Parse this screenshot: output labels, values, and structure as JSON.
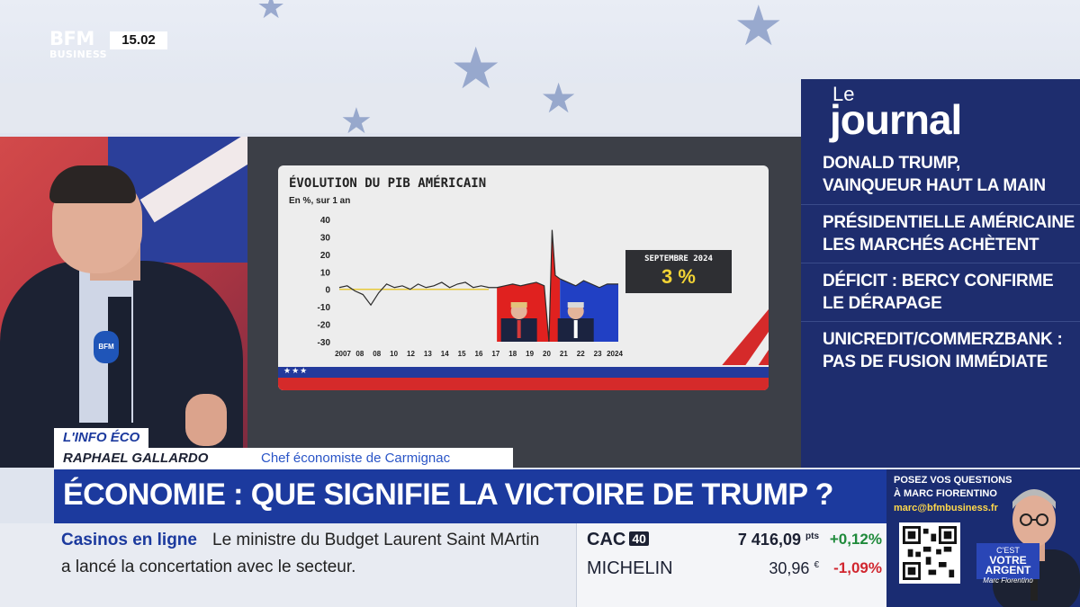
{
  "channel": {
    "logo_top": "BFM",
    "logo_bottom": "BUSINESS",
    "clock": "15.02"
  },
  "chart": {
    "title": "ÉVOLUTION DU PIB AMÉRICAIN",
    "subtitle": "En %, sur 1 an",
    "callout_label": "SEPTEMBRE 2024",
    "callout_value": "3 %"
  },
  "chart_data": {
    "type": "area",
    "title": "ÉVOLUTION DU PIB AMÉRICAIN",
    "subtitle": "En %, sur 1 an",
    "ylabel": "",
    "xlabel": "",
    "ylim": [
      -30,
      40
    ],
    "y_ticks": [
      "40",
      "30",
      "20",
      "10",
      "0",
      "-10",
      "-20",
      "-30"
    ],
    "x_ticks": [
      "2007",
      "08",
      "08",
      "10",
      "12",
      "13",
      "14",
      "15",
      "16",
      "17",
      "18",
      "19",
      "20",
      "21",
      "22",
      "23",
      "2024"
    ],
    "x": [
      2007,
      2007.5,
      2008,
      2008.5,
      2009,
      2009.5,
      2010,
      2010.5,
      2011,
      2011.5,
      2012,
      2012.5,
      2013,
      2013.5,
      2014,
      2014.5,
      2015,
      2015.5,
      2016,
      2016.5,
      2017,
      2017.5,
      2018,
      2018.5,
      2019,
      2019.5,
      2020,
      2020.3,
      2020.5,
      2020.7,
      2021,
      2021.5,
      2022,
      2022.5,
      2023,
      2023.5,
      2024,
      2024.7
    ],
    "series": [
      {
        "values": [
          1,
          2,
          -1,
          -3,
          -9,
          -2,
          3,
          1,
          2,
          0,
          3,
          1,
          2,
          4,
          1,
          3,
          4,
          1,
          2,
          1,
          1,
          2,
          3,
          2,
          3,
          4,
          2,
          -30,
          34,
          8,
          6,
          4,
          2,
          5,
          3,
          1,
          3,
          3
        ]
      }
    ],
    "shaded_periods": [
      {
        "from": 2017,
        "to": 2021,
        "color": "#e0211f"
      },
      {
        "from": 2021,
        "to": 2024.7,
        "color": "#2140c4"
      }
    ]
  },
  "journal": {
    "le": "Le",
    "word": "journal",
    "items": [
      {
        "line1": "DONALD TRUMP,",
        "line2": "VAINQUEUR HAUT LA MAIN"
      },
      {
        "line1": "PRÉSIDENTIELLE AMÉRICAINE :",
        "line2": "LES MARCHÉS ACHÈTENT"
      },
      {
        "line1": "DÉFICIT : BERCY CONFIRME",
        "line2": "LE DÉRAPAGE"
      },
      {
        "line1": "UNICREDIT/COMMERZBANK :",
        "line2": "PAS DE FUSION IMMÉDIATE"
      }
    ]
  },
  "lower_third": {
    "tag": "L'INFO ÉCO",
    "name": "RAPHAEL GALLARDO",
    "role": "Chef économiste de Carmignac",
    "headline": "ÉCONOMIE : QUE SIGNIFIE LA VICTOIRE DE TRUMP ?"
  },
  "ticker": {
    "title": "Casinos en ligne",
    "line1": "Le ministre du Budget Laurent Saint MArtin",
    "line2": "a lancé la concertation avec le secteur."
  },
  "market": {
    "rows": [
      {
        "name": "CAC",
        "badge": "40",
        "value": "7 416,09",
        "unit": "pts",
        "change": "+0,12%",
        "dir": "pos"
      },
      {
        "name": "MICHELIN",
        "badge": "",
        "value": "30,96",
        "unit": "€",
        "change": "-1,09%",
        "dir": "neg"
      }
    ]
  },
  "promo": {
    "line1": "POSEZ VOS QUESTIONS",
    "line2": "À MARC FIORENTINO",
    "email": "marc@bfmbusiness.fr",
    "show_small": "C'EST",
    "show_title": "VOTRE ARGENT",
    "show_sign": "Marc Fiorentino"
  },
  "colors": {
    "accent": "#1c3a9e",
    "journal_bg": "#1e2d6e",
    "positive": "#1f8a3b",
    "negative": "#d1262f"
  },
  "icons": [
    "star-icon",
    "qr-code-icon"
  ]
}
